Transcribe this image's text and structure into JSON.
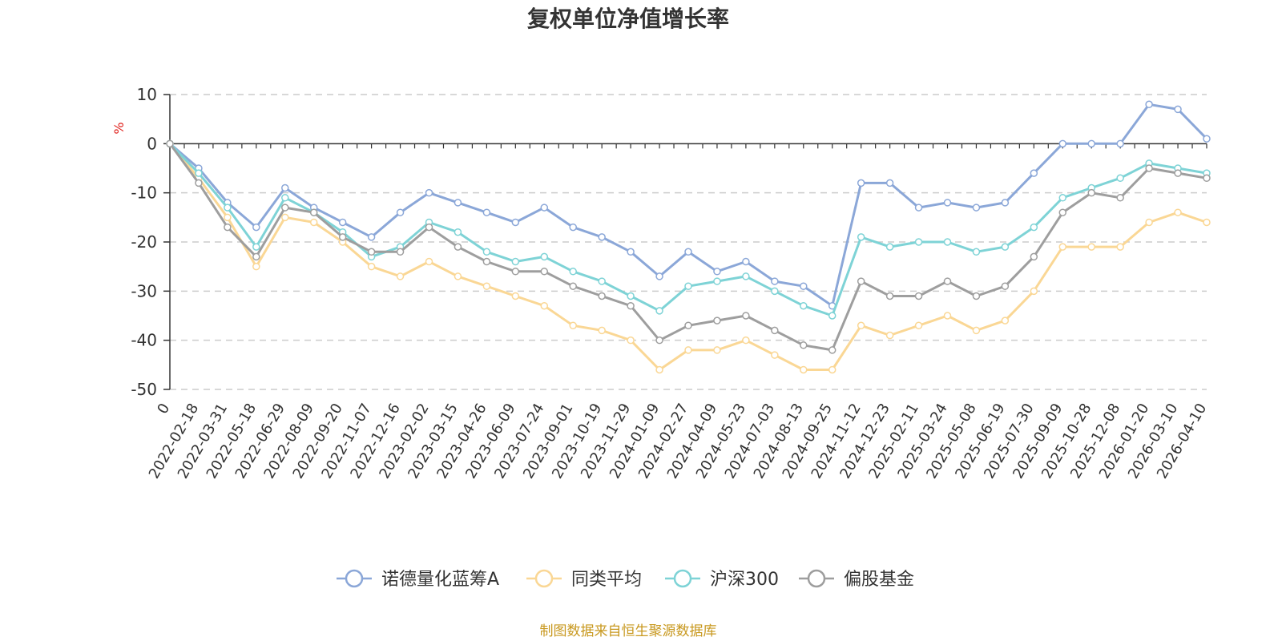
{
  "colors": {
    "fund": "#8BA7D8",
    "peer_avg": "#FAD795",
    "hs300": "#7ED3D6",
    "equity_fund": "#9E9E9E",
    "unit": "#E0201B",
    "source": "#C8981E"
  },
  "chart_data": {
    "type": "line",
    "title": "复权单位净值增长率",
    "ylabel": "%",
    "xlabel": "",
    "ylim": [
      -50,
      10
    ],
    "yticks": [
      10,
      0,
      -10,
      -20,
      -30,
      -40,
      -50
    ],
    "grid": true,
    "legend_position": "bottom-center",
    "source": "制图数据来自恒生聚源数据库",
    "categories": [
      "0",
      "2022-02-18",
      "2022-03-31",
      "2022-05-18",
      "2022-06-29",
      "2022-08-09",
      "2022-09-20",
      "2022-11-07",
      "2022-12-16",
      "2023-02-02",
      "2023-03-15",
      "2023-04-26",
      "2023-06-09",
      "2023-07-24",
      "2023-09-01",
      "2023-10-19",
      "2023-11-29",
      "2024-01-09",
      "2024-02-27",
      "2024-04-09",
      "2024-05-23",
      "2024-07-03",
      "2024-08-13",
      "2024-09-25",
      "2024-11-12",
      "2024-12-23",
      "2025-02-11",
      "2025-03-24",
      "2025-05-08",
      "2025-06-19",
      "2025-07-30",
      "2025-09-09",
      "2025-10-28",
      "2025-12-08",
      "2026-01-20",
      "2026-03-10",
      "2026-04-10"
    ],
    "series": [
      {
        "name": "诺德量化蓝筹A",
        "color_key": "fund",
        "values": [
          0,
          -5,
          -12,
          -17,
          -9,
          -13,
          -16,
          -19,
          -14,
          -10,
          -12,
          -14,
          -16,
          -13,
          -17,
          -19,
          -22,
          -27,
          -22,
          -26,
          -24,
          -28,
          -29,
          -33,
          -8,
          -8,
          -13,
          -12,
          -13,
          -12,
          -6,
          0,
          0,
          0,
          8,
          7,
          1
        ]
      },
      {
        "name": "同类平均",
        "color_key": "peer_avg",
        "values": [
          0,
          -7,
          -15,
          -25,
          -15,
          -16,
          -20,
          -25,
          -27,
          -24,
          -27,
          -29,
          -31,
          -33,
          -37,
          -38,
          -40,
          -46,
          -42,
          -42,
          -40,
          -43,
          -46,
          -46,
          -37,
          -39,
          -37,
          -35,
          -38,
          -36,
          -30,
          -21,
          -21,
          -21,
          -16,
          -14,
          -16
        ]
      },
      {
        "name": "沪深300",
        "color_key": "hs300",
        "values": [
          0,
          -6,
          -13,
          -21,
          -11,
          -14,
          -18,
          -23,
          -21,
          -16,
          -18,
          -22,
          -24,
          -23,
          -26,
          -28,
          -31,
          -34,
          -29,
          -28,
          -27,
          -30,
          -33,
          -35,
          -19,
          -21,
          -20,
          -20,
          -22,
          -21,
          -17,
          -11,
          -9,
          -7,
          -4,
          -5,
          -6
        ]
      },
      {
        "name": "偏股基金",
        "color_key": "equity_fund",
        "values": [
          0,
          -8,
          -17,
          -23,
          -13,
          -14,
          -19,
          -22,
          -22,
          -17,
          -21,
          -24,
          -26,
          -26,
          -29,
          -31,
          -33,
          -40,
          -37,
          -36,
          -35,
          -38,
          -41,
          -42,
          -28,
          -31,
          -31,
          -28,
          -31,
          -29,
          -23,
          -14,
          -10,
          -11,
          -5,
          -6,
          -7
        ]
      }
    ]
  }
}
